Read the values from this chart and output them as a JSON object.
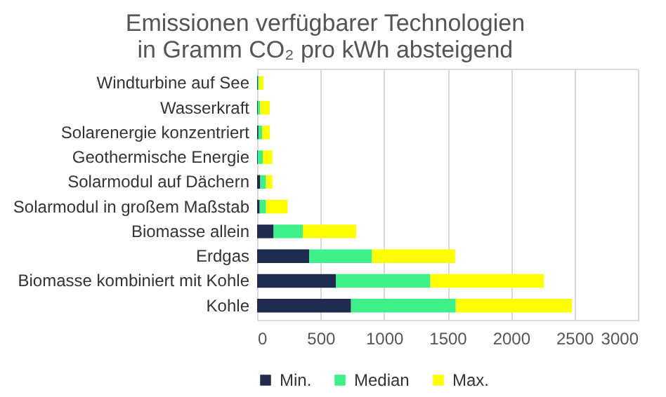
{
  "chart_data": {
    "type": "bar",
    "orientation": "horizontal",
    "stacked": true,
    "title": "Emissionen verfügbarer Technologien in Gramm CO₂ pro kWh absteigend",
    "categories": [
      "Windturbine auf See",
      "Wasserkraft",
      "Solarenergie konzentriert",
      "Geothermische Energie",
      "Solarmodul auf Dächern",
      "Solarmodul in großem Maßstab",
      "Biomasse allein",
      "Erdgas",
      "Biomasse kombiniert mit Kohle",
      "Kohle"
    ],
    "series": [
      {
        "name": "Min.",
        "color": "#1f2a4f",
        "values": [
          5,
          5,
          10,
          5,
          25,
          20,
          130,
          410,
          620,
          740
        ]
      },
      {
        "name": "Median",
        "color": "#3ef08a",
        "values": [
          10,
          20,
          30,
          40,
          45,
          50,
          230,
          495,
          745,
          825
        ]
      },
      {
        "name": "Max.",
        "color": "#ffff00",
        "values": [
          35,
          75,
          60,
          75,
          50,
          170,
          420,
          655,
          895,
          915
        ]
      }
    ],
    "xlim": [
      0,
      3000
    ],
    "xticks": [
      0,
      500,
      1000,
      1500,
      2000,
      2500,
      3000
    ],
    "grid": "x",
    "legend": "bottom"
  }
}
